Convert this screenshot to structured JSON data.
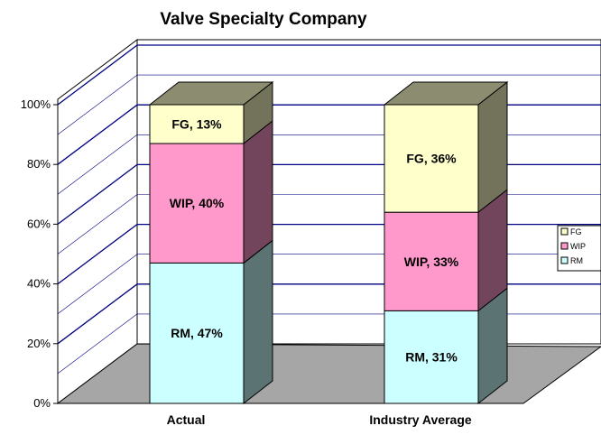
{
  "chart_data": {
    "type": "bar",
    "stacked": true,
    "three_d": true,
    "title": "Valve Specialty Company",
    "categories": [
      "Actual",
      "Industry Average"
    ],
    "series": [
      {
        "name": "RM",
        "values": [
          47,
          31
        ],
        "labels": [
          "RM, 47%",
          "RM, 31%"
        ]
      },
      {
        "name": "WIP",
        "values": [
          40,
          33
        ],
        "labels": [
          "WIP, 40%",
          "WIP, 33%"
        ]
      },
      {
        "name": "FG",
        "values": [
          13,
          36
        ],
        "labels": [
          "FG, 13%",
          "FG, 36%"
        ]
      }
    ],
    "y_ticks": [
      "0%",
      "20%",
      "40%",
      "60%",
      "80%",
      "100%"
    ],
    "ylim": [
      0,
      100
    ],
    "grid": true,
    "legend": {
      "position": "right",
      "entries": [
        "FG",
        "WIP",
        "RM"
      ]
    },
    "colors": {
      "RM": "#ccffff",
      "WIP": "#ff99cc",
      "FG": "#ffffcc",
      "floor": "#a6a6a6",
      "wall": "#ffffff",
      "gridline": "#000080"
    }
  }
}
